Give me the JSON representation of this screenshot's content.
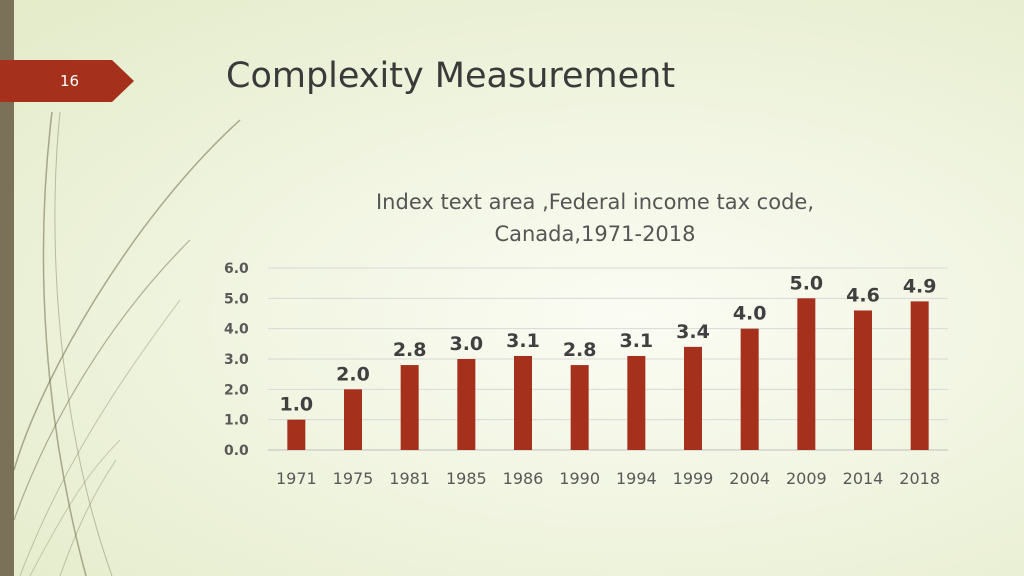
{
  "slide": {
    "number": "16",
    "title": "Complexity Measurement"
  },
  "colors": {
    "bar": "#a5311c",
    "tab": "#a5311c",
    "sidebar": "#7a7158",
    "decor_line": "#6f6a4a",
    "grid": "#d9d9d9",
    "label": "#404040"
  },
  "chart_data": {
    "type": "bar",
    "title_lines": [
      "Index text area ,Federal income tax code,",
      "Canada,1971-2018"
    ],
    "categories": [
      "1971",
      "1975",
      "1981",
      "1985",
      "1986",
      "1990",
      "1994",
      "1999",
      "2004",
      "2009",
      "2014",
      "2018"
    ],
    "values": [
      1.0,
      2.0,
      2.8,
      3.0,
      3.1,
      2.8,
      3.1,
      3.4,
      4.0,
      5.0,
      4.6,
      4.9
    ],
    "value_labels": [
      "1.0",
      "2.0",
      "2.8",
      "3.0",
      "3.1",
      "2.8",
      "3.1",
      "3.4",
      "4.0",
      "5.0",
      "4.6",
      "4.9"
    ],
    "ylim": [
      0,
      6
    ],
    "yticks": [
      "0.0",
      "1.0",
      "2.0",
      "3.0",
      "4.0",
      "5.0",
      "6.0"
    ],
    "xlabel": "",
    "ylabel": "",
    "grid": true,
    "legend": "none"
  }
}
